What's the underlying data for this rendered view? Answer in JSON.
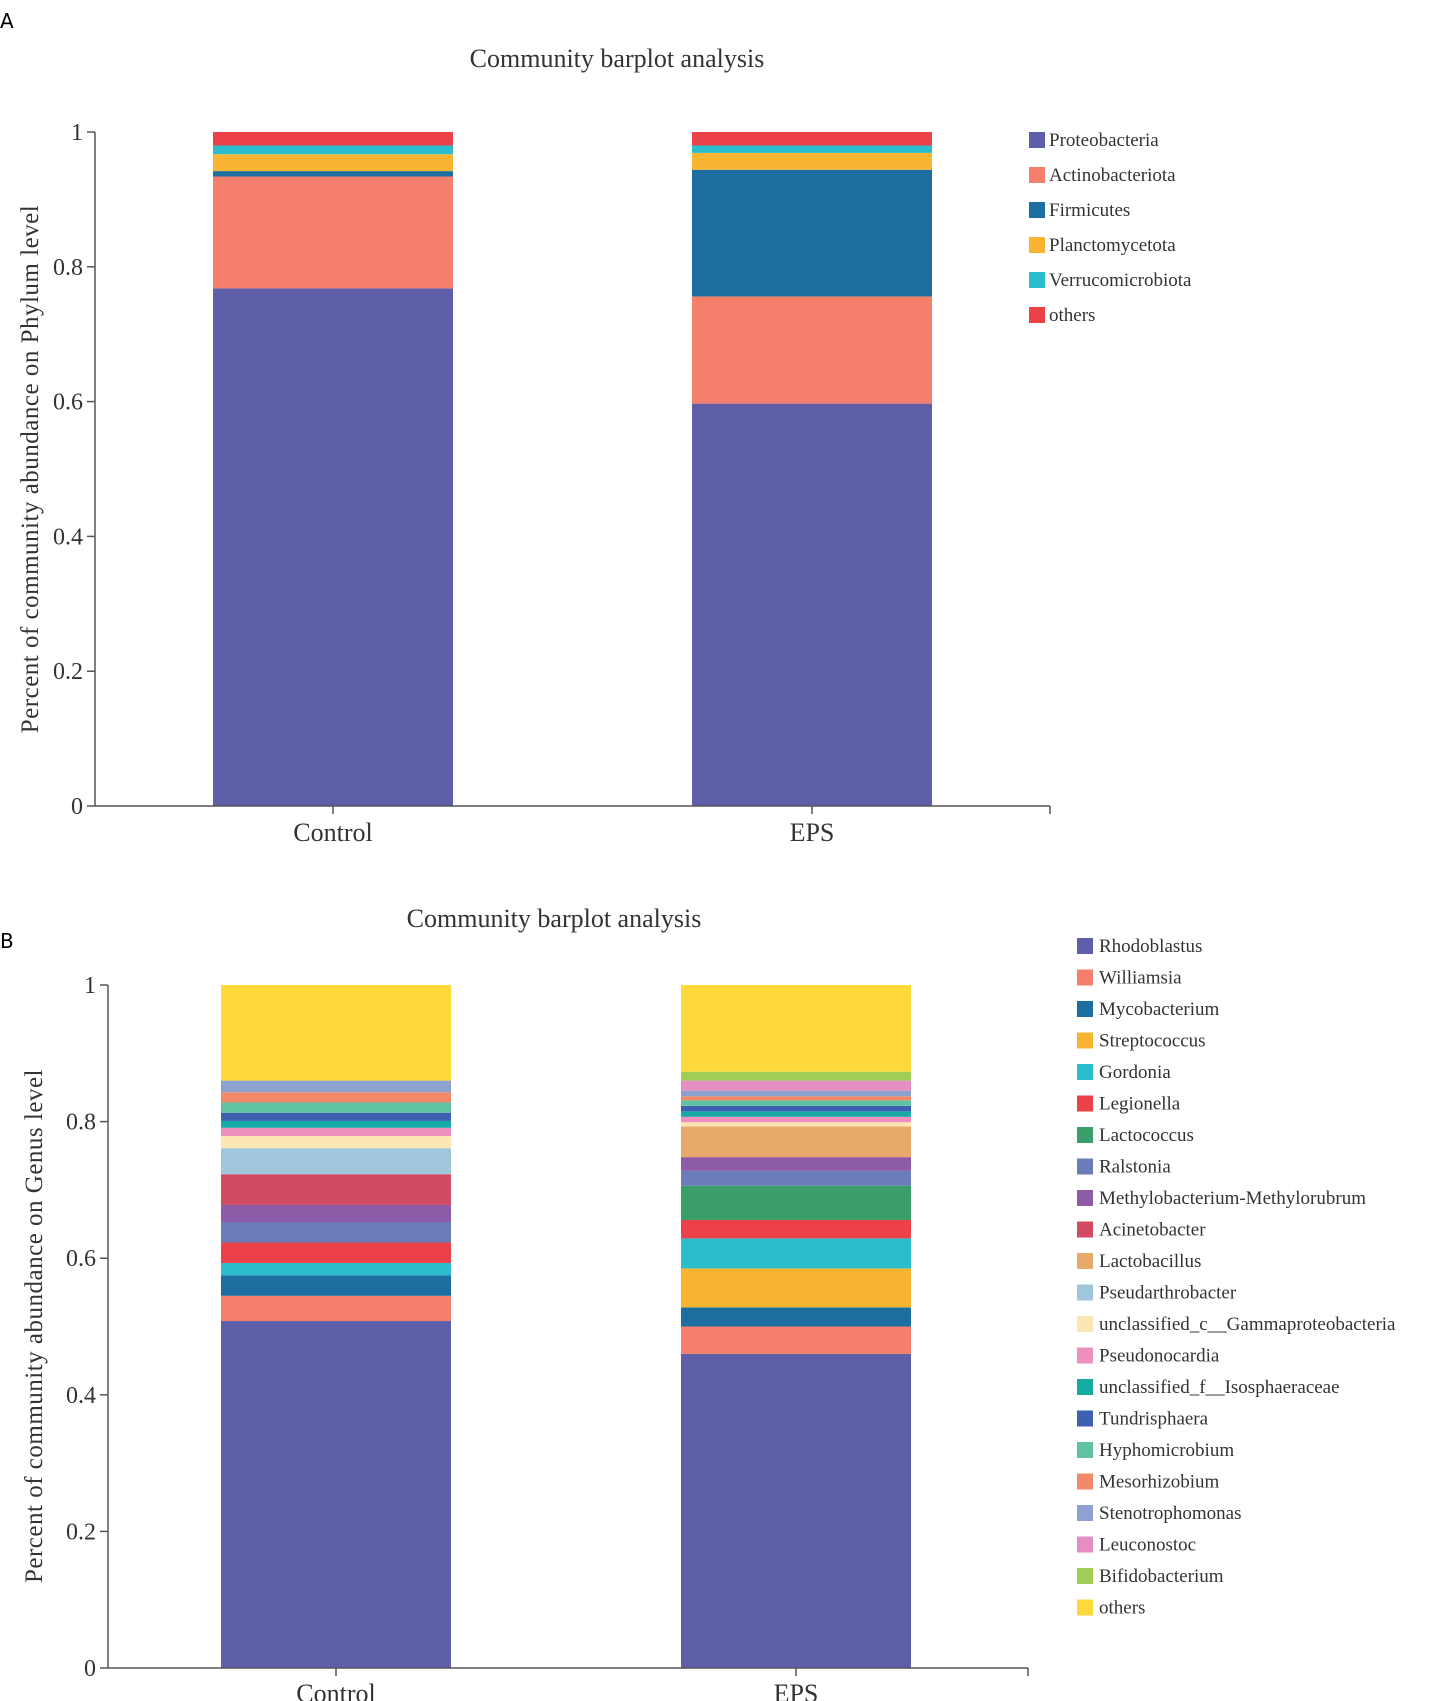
{
  "chart_data": [
    {
      "panel_label": "A",
      "type": "bar",
      "stacked": true,
      "title": "Community barplot analysis",
      "xlabel": "",
      "ylabel": "Percent of community abundance on Phylum level",
      "ylim": [
        0,
        1
      ],
      "yticks": [
        "0",
        "0.2",
        "0.4",
        "0.6",
        "0.8",
        "1"
      ],
      "categories": [
        "Control",
        "EPS"
      ],
      "legend_position": "top-right",
      "series": [
        {
          "name": "Proteobacteria",
          "color": "#5f5ea8",
          "values": [
            0.768,
            0.597
          ]
        },
        {
          "name": "Actinobacteriota",
          "color": "#f47f6b",
          "values": [
            0.166,
            0.159
          ]
        },
        {
          "name": "Firmicutes",
          "color": "#1c6da0",
          "values": [
            0.008,
            0.188
          ]
        },
        {
          "name": "Planctomycetota",
          "color": "#f9b531",
          "values": [
            0.025,
            0.025
          ]
        },
        {
          "name": "Verrucomicrobiota",
          "color": "#2bbdcb",
          "values": [
            0.013,
            0.011
          ]
        },
        {
          "name": "others",
          "color": "#ec4149",
          "values": [
            0.02,
            0.02
          ]
        }
      ]
    },
    {
      "panel_label": "B",
      "type": "bar",
      "stacked": true,
      "title": "Community barplot analysis",
      "xlabel": "",
      "ylabel": "Percent of community abundance on Genus level",
      "ylim": [
        0,
        1
      ],
      "yticks": [
        "0",
        "0.2",
        "0.4",
        "0.6",
        "0.8",
        "1"
      ],
      "categories": [
        "Control",
        "EPS"
      ],
      "legend_position": "right",
      "series": [
        {
          "name": "Rhodoblastus",
          "color": "#5f5ea8",
          "values": [
            0.508,
            0.46
          ]
        },
        {
          "name": "Williamsia",
          "color": "#f47f6b",
          "values": [
            0.037,
            0.04
          ]
        },
        {
          "name": "Mycobacterium",
          "color": "#1c6da0",
          "values": [
            0.03,
            0.028
          ]
        },
        {
          "name": "Streptococcus",
          "color": "#f9b531",
          "values": [
            0.0,
            0.057
          ]
        },
        {
          "name": "Gordonia",
          "color": "#2bbdcb",
          "values": [
            0.018,
            0.044
          ]
        },
        {
          "name": "Legionella",
          "color": "#ec4149",
          "values": [
            0.03,
            0.027
          ]
        },
        {
          "name": "Lactococcus",
          "color": "#3a9e6b",
          "values": [
            0.0,
            0.05
          ]
        },
        {
          "name": "Ralstonia",
          "color": "#6a7db8",
          "values": [
            0.03,
            0.022
          ]
        },
        {
          "name": "Methylobacterium-Methylorubrum",
          "color": "#8e5ba8",
          "values": [
            0.025,
            0.02
          ]
        },
        {
          "name": "Acinetobacter",
          "color": "#d24b62",
          "values": [
            0.045,
            0.0
          ]
        },
        {
          "name": "Lactobacillus",
          "color": "#e9a96a",
          "values": [
            0.0,
            0.045
          ]
        },
        {
          "name": "Pseudarthrobacter",
          "color": "#9fc6da",
          "values": [
            0.038,
            0.0
          ]
        },
        {
          "name": "unclassified_c__Gammaproteobacteria",
          "color": "#fbe6b4",
          "values": [
            0.018,
            0.006
          ]
        },
        {
          "name": "Pseudonocardia",
          "color": "#ee8fbd",
          "values": [
            0.012,
            0.008
          ]
        },
        {
          "name": "unclassified_f__Isosphaeraceae",
          "color": "#16aaa5",
          "values": [
            0.01,
            0.008
          ]
        },
        {
          "name": "Tundrisphaera",
          "color": "#3d60b0",
          "values": [
            0.012,
            0.008
          ]
        },
        {
          "name": "Hyphomicrobium",
          "color": "#5fc2a2",
          "values": [
            0.015,
            0.008
          ]
        },
        {
          "name": "Mesorhizobium",
          "color": "#f18a68",
          "values": [
            0.015,
            0.006
          ]
        },
        {
          "name": "Stenotrophomonas",
          "color": "#8da2d1",
          "values": [
            0.017,
            0.008
          ]
        },
        {
          "name": "Leuconostoc",
          "color": "#e58ec2",
          "values": [
            0.0,
            0.015
          ]
        },
        {
          "name": "Bifidobacterium",
          "color": "#9fce57",
          "values": [
            0.0,
            0.013
          ]
        },
        {
          "name": "others",
          "color": "#fdd93a",
          "values": [
            0.14,
            0.127
          ]
        }
      ]
    }
  ]
}
